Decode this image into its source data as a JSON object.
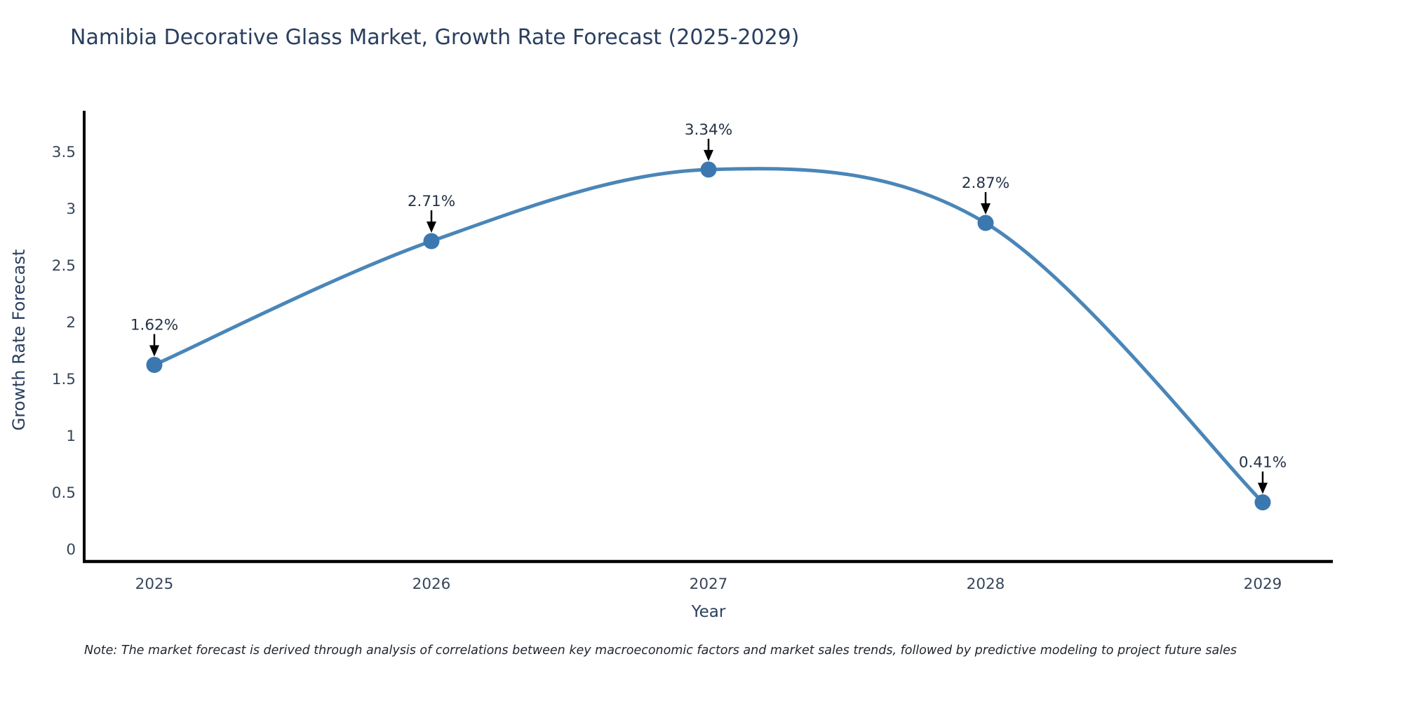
{
  "header": {
    "title": "Namibia Decorative Glass Market, Growth Rate Forecast (2025-2029)"
  },
  "footnote": "Note: The market forecast is derived through analysis of correlations between key macroeconomic factors and market sales trends, followed by predictive modeling to project future sales",
  "chart_data": {
    "type": "line",
    "title": "Namibia Decorative Glass Market, Growth Rate Forecast (2025-2029)",
    "xlabel": "Year",
    "ylabel": "Growth Rate Forecast",
    "x": [
      2025,
      2026,
      2027,
      2028,
      2029
    ],
    "xticklabels": [
      "2025",
      "2026",
      "2027",
      "2028",
      "2029"
    ],
    "values": [
      1.62,
      2.71,
      3.34,
      2.87,
      0.41
    ],
    "point_labels": [
      "1.62%",
      "2.71%",
      "3.34%",
      "2.87%",
      "0.41%"
    ],
    "yticks": [
      0,
      0.5,
      1,
      1.5,
      2,
      2.5,
      3,
      3.5
    ],
    "ylim": [
      0,
      3.86
    ],
    "grid": false,
    "legend_position": "none",
    "curve": "smooth-spline",
    "annotation_style": "value-label-with-down-arrow",
    "colors": {
      "line": "#4a86b8",
      "marker": "#3c78b0",
      "axis": "#000000",
      "annotation_text": "#253347",
      "tick_text": "#36455a",
      "title_text": "#2a3f5f"
    }
  }
}
